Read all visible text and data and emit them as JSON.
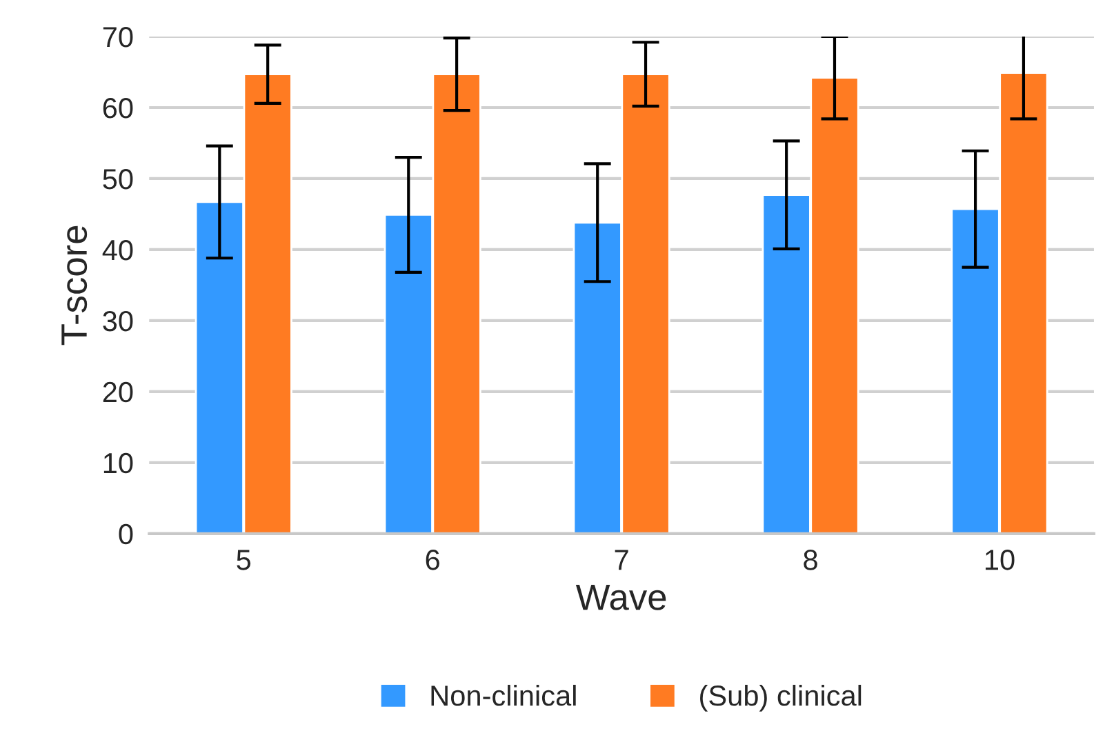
{
  "chart_data": {
    "type": "bar",
    "xlabel": "Wave",
    "ylabel": "T-score",
    "categories": [
      "5",
      "6",
      "7",
      "8",
      "10"
    ],
    "series": [
      {
        "name": "Non-clinical",
        "color": "#3399ff",
        "values": [
          46.7,
          44.9,
          43.8,
          47.7,
          45.7
        ],
        "errors": [
          7.9,
          8.1,
          8.3,
          7.6,
          8.2
        ]
      },
      {
        "name": "(Sub) clinical",
        "color": "#ff7b22",
        "values": [
          64.7,
          64.7,
          64.7,
          64.2,
          64.9
        ],
        "errors": [
          4.1,
          5.1,
          4.5,
          5.8,
          6.5
        ]
      }
    ],
    "ylim": [
      0,
      70
    ],
    "yticks": [
      0,
      10,
      20,
      30,
      40,
      50,
      60,
      70
    ],
    "grid": "y",
    "legend": "bottom"
  }
}
